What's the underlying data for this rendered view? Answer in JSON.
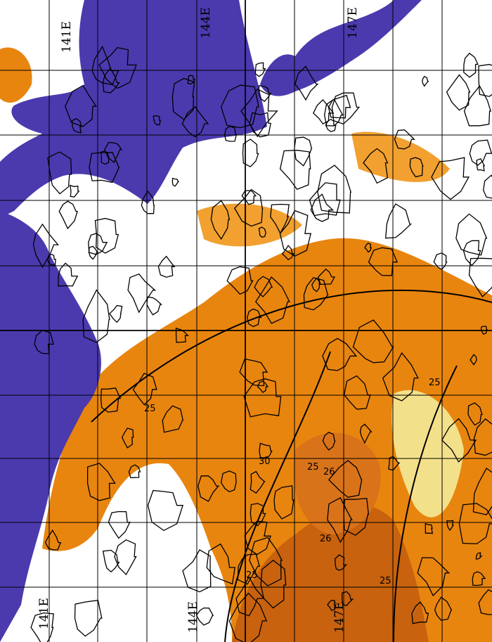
{
  "map": {
    "type": "sea surface temperature contour map",
    "colors": {
      "land": "#4a3aae",
      "no_data": "#ffffff",
      "warm_dark": "#c8620e",
      "warm": "#e8850f",
      "warm_light": "#f2a030",
      "pale": "#f3e08a",
      "contour": "#000000",
      "grid": "#000000"
    },
    "longitude_labels_top": [
      "141E",
      "144E",
      "147E"
    ],
    "longitude_labels_bottom": [
      "141E",
      "144E",
      "147E"
    ],
    "contour_labels": [
      "25",
      "25",
      "25",
      "25",
      "26",
      "26",
      "30",
      "25"
    ]
  }
}
